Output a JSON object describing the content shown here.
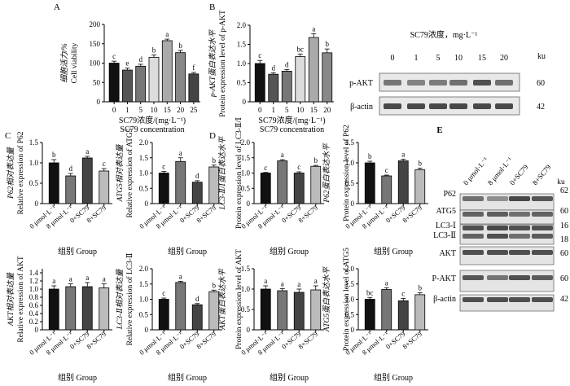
{
  "panel_labels": [
    "A",
    "B",
    "C",
    "D",
    "E"
  ],
  "concentration_axis": {
    "line1": "SC79浓度/(mg·L⁻¹)",
    "line2": "SC79 concentration",
    "ticks": [
      "0",
      "1",
      "5",
      "10",
      "15",
      "20",
      "25"
    ]
  },
  "group_axis": {
    "label": "组别 Group",
    "ticks": [
      "0 μmol·L⁻¹",
      "8 μmol·L⁻¹",
      "0+SC79",
      "8+SC79"
    ]
  },
  "wb_B": {
    "title": "SC79浓度，mg·L⁻¹",
    "lanes": [
      "0",
      "1",
      "5",
      "10",
      "15",
      "20"
    ],
    "ku_label": "ku",
    "rows": [
      {
        "label": "p-AKT",
        "ku": "60"
      },
      {
        "label": "β-actin",
        "ku": "42"
      }
    ]
  },
  "wb_E": {
    "lanes": [
      "0 μmol·L⁻¹",
      "8 μmol·L⁻¹",
      "0+SC79",
      "8+SC79"
    ],
    "ku_label": "ku",
    "rows": [
      {
        "label": "P62",
        "ku": "62"
      },
      {
        "label": "ATG5",
        "ku": "60"
      },
      {
        "label": "LC3-Ⅰ",
        "ku": "16"
      },
      {
        "label": "LC3-Ⅱ",
        "ku": "18"
      },
      {
        "label": "AKT",
        "ku": "60"
      },
      {
        "label": "P-AKT",
        "ku": "60"
      },
      {
        "label": "β-actin",
        "ku": "42"
      }
    ]
  },
  "chart_data": [
    {
      "id": "A",
      "type": "bar",
      "x_axis": "concentration",
      "categories": [
        "0",
        "1",
        "5",
        "10",
        "15",
        "20",
        "25"
      ],
      "values": [
        100,
        82,
        92,
        115,
        158,
        127,
        72
      ],
      "errors": [
        5,
        5,
        5,
        6,
        4,
        6,
        4
      ],
      "letters": [
        "c",
        "e",
        "d",
        "b",
        "a",
        "b",
        "f"
      ],
      "ylabel_cn": "细胞活力/%",
      "ylabel_en": "Cell viability",
      "ylim": [
        0,
        200
      ],
      "yticks": [
        0,
        50,
        100,
        150,
        200
      ],
      "colors": [
        "#111111",
        "#555555",
        "#777777",
        "#dcdcdc",
        "#aaaaaa",
        "#888888",
        "#444444"
      ]
    },
    {
      "id": "B",
      "type": "bar",
      "x_axis": "concentration",
      "categories": [
        "0",
        "1",
        "5",
        "10",
        "15",
        "20"
      ],
      "values": [
        1.0,
        0.72,
        0.8,
        1.18,
        1.68,
        1.28
      ],
      "errors": [
        0.08,
        0.04,
        0.04,
        0.07,
        0.1,
        0.1
      ],
      "letters": [
        "c",
        "d",
        "d",
        "bc",
        "a",
        "b"
      ],
      "ylabel_cn": "p-AKT蛋白表达水平",
      "ylabel_en": "Protein expression level of p-AKT",
      "ylim": [
        0,
        2.0
      ],
      "yticks": [
        0,
        0.5,
        1.0,
        1.5,
        2.0
      ],
      "colors": [
        "#111111",
        "#555555",
        "#777777",
        "#dcdcdc",
        "#aaaaaa",
        "#888888"
      ]
    },
    {
      "id": "C1",
      "type": "bar",
      "x_axis": "group",
      "values": [
        1.0,
        0.68,
        1.12,
        0.8
      ],
      "errors": [
        0.08,
        0.06,
        0.04,
        0.06
      ],
      "letters": [
        "b",
        "d",
        "a",
        "c"
      ],
      "ylabel_cn": "P62相对表达量",
      "ylabel_en": "Relative expression of P62",
      "ylim": [
        0,
        1.5
      ],
      "yticks": [
        0,
        0.5,
        1.0,
        1.5
      ]
    },
    {
      "id": "C2",
      "type": "bar",
      "x_axis": "group",
      "values": [
        1.0,
        1.38,
        0.7,
        1.2
      ],
      "errors": [
        0.05,
        0.12,
        0.05,
        0.06
      ],
      "letters": [
        "c",
        "a",
        "d",
        "b"
      ],
      "ylabel_cn": "ATG5相对表达量",
      "ylabel_en": "Relative expression of ATG5",
      "ylim": [
        0,
        2.0
      ],
      "yticks": [
        0,
        0.5,
        1.0,
        1.5,
        2.0
      ]
    },
    {
      "id": "D1",
      "type": "bar",
      "x_axis": "group",
      "values": [
        1.0,
        1.4,
        1.0,
        1.22
      ],
      "errors": [
        0.02,
        0.04,
        0.04,
        0.03
      ],
      "letters": [
        "c",
        "a",
        "c",
        "b"
      ],
      "ylabel_cn": "LC3-Ⅱ/Ⅰ蛋白表达水平",
      "ylabel_en": "Protein expression level of LC3-Ⅱ/Ⅰ",
      "ylim": [
        0,
        2.0
      ],
      "yticks": [
        0,
        0.5,
        1.0,
        1.5,
        2.0
      ]
    },
    {
      "id": "D2",
      "type": "bar",
      "x_axis": "group",
      "values": [
        1.0,
        0.68,
        1.05,
        0.83
      ],
      "errors": [
        0.04,
        0.02,
        0.04,
        0.04
      ],
      "letters": [
        "b",
        "c",
        "a",
        "b"
      ],
      "ylabel_cn": "P62蛋白表达水平",
      "ylabel_en": "Protein expression level of P62",
      "ylim": [
        0,
        1.5
      ],
      "yticks": [
        0,
        0.5,
        1.0,
        1.5
      ]
    },
    {
      "id": "C3",
      "type": "bar",
      "x_axis": "group",
      "values": [
        1.0,
        1.06,
        1.06,
        1.03
      ],
      "errors": [
        0.08,
        0.07,
        0.1,
        0.1
      ],
      "letters": [
        "a",
        "a",
        "a",
        "a"
      ],
      "ylabel_cn": "AKT相对表达量",
      "ylabel_en": "Relative expression of AKT",
      "ylim": [
        0,
        1.5
      ],
      "yticks": [
        0,
        0.2,
        0.4,
        0.6,
        0.8,
        1.0,
        1.2,
        1.4
      ]
    },
    {
      "id": "C4",
      "type": "bar",
      "x_axis": "group",
      "values": [
        1.0,
        1.55,
        0.82,
        1.25
      ],
      "errors": [
        0.04,
        0.04,
        0.04,
        0.05
      ],
      "letters": [
        "c",
        "a",
        "d",
        "b"
      ],
      "ylabel_cn": "LC3-Ⅱ相对表达量",
      "ylabel_en": "Relative expression of LC3-Ⅱ",
      "ylim": [
        0,
        2.0
      ],
      "yticks": [
        0,
        0.5,
        1.0,
        1.5,
        2.0
      ]
    },
    {
      "id": "D3",
      "type": "bar",
      "x_axis": "group",
      "values": [
        1.0,
        0.96,
        0.92,
        0.98
      ],
      "errors": [
        0.08,
        0.05,
        0.08,
        0.1
      ],
      "letters": [
        "a",
        "a",
        "a",
        "a"
      ],
      "ylabel_cn": "AKT蛋白表达水平",
      "ylabel_en": "Protein expression level of AKT",
      "ylim": [
        0,
        1.5
      ],
      "yticks": [
        0,
        0.5,
        1.0,
        1.5
      ]
    },
    {
      "id": "D4",
      "type": "bar",
      "x_axis": "group",
      "values": [
        1.0,
        1.32,
        0.95,
        1.15
      ],
      "errors": [
        0.06,
        0.06,
        0.08,
        0.06
      ],
      "letters": [
        "bc",
        "a",
        "c",
        "b"
      ],
      "ylabel_cn": "ATG5蛋白表达水平",
      "ylabel_en": "Protein expression level of ATG5",
      "ylim": [
        0,
        2.0
      ],
      "yticks": [
        0,
        0.5,
        1.0,
        1.5,
        2.0
      ]
    }
  ]
}
